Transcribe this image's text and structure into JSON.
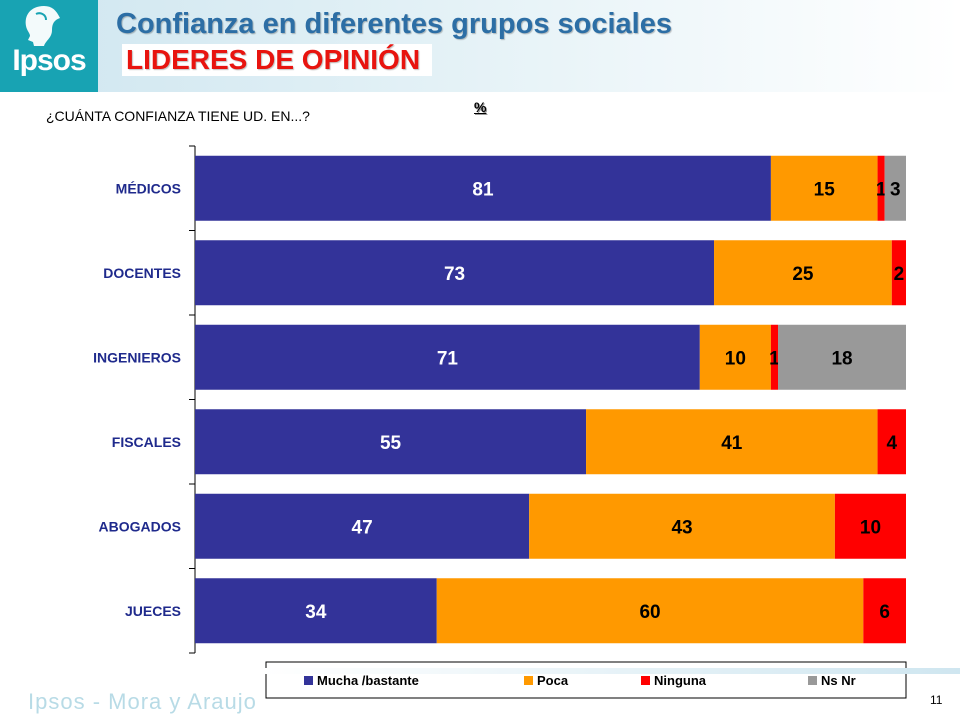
{
  "header": {
    "logo_text": "Ipsos",
    "title": "Confianza en diferentes grupos sociales",
    "subtitle": "LIDERES DE OPINIÓN"
  },
  "question": "¿CUÁNTA CONFIANZA TIENE UD. EN...?",
  "unit_label": "%",
  "colors": {
    "title": "#2c6ea5",
    "subtitle": "#e8140f",
    "category_labels": "#1f2a8c",
    "series": [
      "#333399",
      "#ff9900",
      "#ff0000",
      "#999999"
    ]
  },
  "chart_data": {
    "type": "bar",
    "orientation": "horizontal",
    "stacked": true,
    "categories": [
      "MÉDICOS",
      "DOCENTES",
      "INGENIEROS",
      "FISCALES",
      "ABOGADOS",
      "JUECES"
    ],
    "series": [
      {
        "name": "Mucha /bastante",
        "values": [
          81,
          73,
          71,
          55,
          47,
          34
        ]
      },
      {
        "name": "Poca",
        "values": [
          15,
          25,
          10,
          41,
          43,
          60
        ]
      },
      {
        "name": "Ninguna",
        "values": [
          1,
          2,
          1,
          4,
          10,
          6
        ]
      },
      {
        "name": "Ns  Nr",
        "values": [
          3,
          0,
          18,
          0,
          0,
          0
        ]
      }
    ],
    "data_labels": [
      [
        "81",
        "15",
        "1",
        "3"
      ],
      [
        "73",
        "25",
        "2",
        ""
      ],
      [
        "71",
        "10",
        "1",
        "18"
      ],
      [
        "55",
        "41",
        "4",
        ""
      ],
      [
        "47",
        "43",
        "10",
        ""
      ],
      [
        "34",
        "60",
        "6",
        ""
      ]
    ],
    "legend_position": "bottom",
    "grid": false
  },
  "footer": {
    "brand": "Ipsos - Mora y Araujo",
    "page_number": "11"
  }
}
